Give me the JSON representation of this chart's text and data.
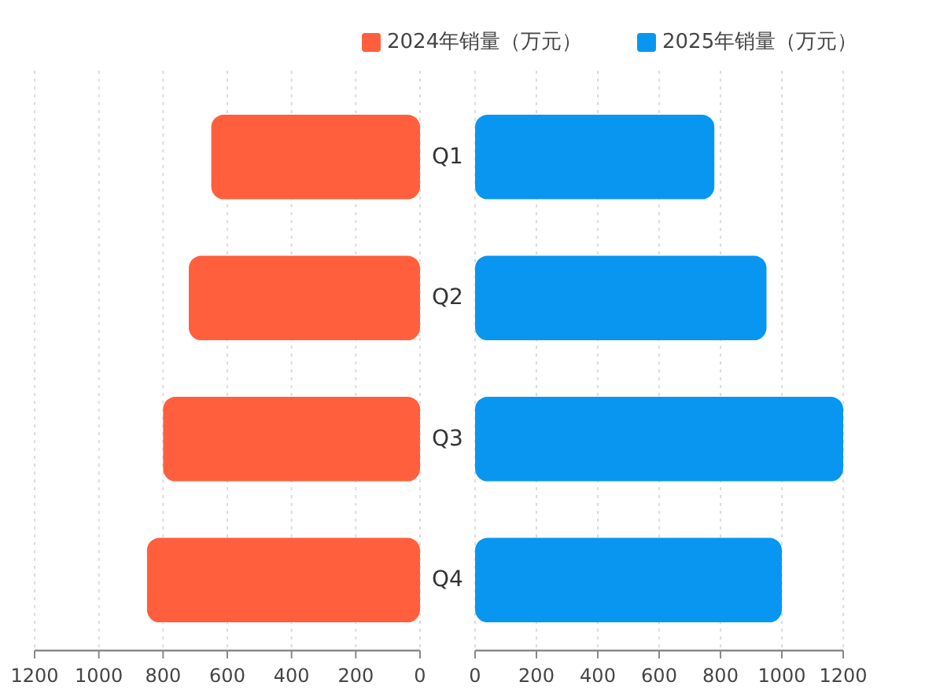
{
  "chart_data": [
    {
      "type": "bar",
      "orientation": "horizontal",
      "categories": [
        "Q1",
        "Q2",
        "Q3",
        "Q4"
      ],
      "series": [
        {
          "name": "2024年销量（万元）",
          "color": "#ff5f3c",
          "values": [
            650,
            720,
            800,
            850
          ]
        }
      ],
      "xlim": [
        1200,
        0
      ],
      "xticks": [
        1200,
        1000,
        800,
        600,
        400,
        200,
        0
      ],
      "grid": "x",
      "legend": "top right"
    },
    {
      "type": "bar",
      "orientation": "horizontal",
      "categories": [
        null,
        null,
        null,
        null
      ],
      "series": [
        {
          "name": "2025年销量（万元）",
          "color": "#0896f0",
          "values": [
            780,
            950,
            1200,
            1000
          ]
        }
      ],
      "xlim": [
        0,
        1200
      ],
      "xticks": [
        0,
        200,
        400,
        600,
        800,
        1000,
        1200
      ],
      "grid": "x",
      "legend": "top right"
    }
  ]
}
